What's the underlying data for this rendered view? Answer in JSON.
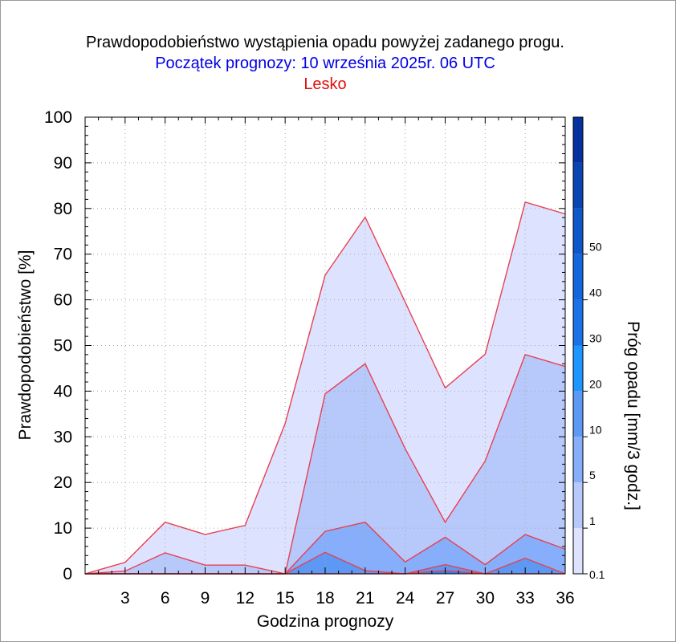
{
  "chart_data": {
    "type": "area",
    "title": "Prawdopodobieństwo wystąpienia opadu powyżej zadanego progu.",
    "subtitle": "Początek prognozy: 10 września 2025r. 06 UTC",
    "location": "Lesko",
    "xlabel": "Godzina prognozy",
    "ylabel": "Prawdopodobieństwo [%]",
    "colorbar_label": "Próg opadu [mm/3 godz.]",
    "xlim": [
      0,
      36
    ],
    "ylim": [
      0,
      100
    ],
    "x_ticks": [
      3,
      6,
      9,
      12,
      15,
      18,
      21,
      24,
      27,
      30,
      33,
      36
    ],
    "y_ticks": [
      0,
      10,
      20,
      30,
      40,
      50,
      60,
      70,
      80,
      90,
      100
    ],
    "grid": true,
    "x": [
      0,
      3,
      6,
      9,
      12,
      15,
      18,
      21,
      24,
      27,
      30,
      33,
      36
    ],
    "series": [
      {
        "name": "0.1",
        "color": "#dde2ff",
        "values": [
          0,
          2.5,
          11.3,
          8.6,
          10.6,
          32.9,
          65.4,
          78.1,
          59.5,
          40.7,
          48.1,
          81.4,
          78.8
        ]
      },
      {
        "name": "1",
        "color": "#b7c9fb",
        "values": [
          0,
          0.6,
          4.6,
          1.9,
          1.9,
          0,
          39.4,
          46.0,
          27.4,
          11.3,
          24.7,
          48.0,
          45.4
        ]
      },
      {
        "name": "5",
        "color": "#87aefa",
        "values": [
          0,
          0,
          0,
          0,
          0,
          0,
          9.3,
          11.3,
          2.6,
          8.0,
          2.0,
          8.6,
          5.4
        ]
      },
      {
        "name": "10",
        "color": "#5c98f4",
        "values": [
          0,
          0,
          0,
          0,
          0,
          0,
          4.7,
          0.7,
          0,
          2.0,
          0,
          3.4,
          0
        ]
      },
      {
        "name": "20",
        "color": "#3a7fe8",
        "values": [
          0,
          0,
          0,
          0,
          0,
          0,
          0,
          0,
          0,
          0.7,
          0,
          0,
          0
        ]
      }
    ],
    "line_color": "#e84050",
    "colorbar": {
      "tick_labels": [
        "0.1",
        "1",
        "5",
        "10",
        "20",
        "30",
        "40",
        "50"
      ],
      "colors": [
        "#dde2ff",
        "#b7c9fb",
        "#87aefa",
        "#5c98f4",
        "#1e96ff",
        "#1a72e8",
        "#1466dc",
        "#0f56c8",
        "#0a45b4",
        "#0632a0"
      ]
    }
  }
}
